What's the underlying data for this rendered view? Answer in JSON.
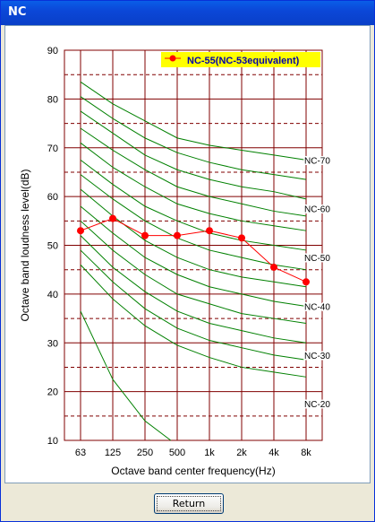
{
  "window": {
    "title": "NC"
  },
  "buttons": {
    "return_label": "Return"
  },
  "chart_data": {
    "type": "line",
    "xlabel": "Octave band center frequency(Hz)",
    "ylabel": "Octave band loudness level(dB)",
    "categories": [
      "63",
      "125",
      "250",
      "500",
      "1k",
      "2k",
      "4k",
      "8k"
    ],
    "ylim": [
      10,
      90
    ],
    "yticks": [
      10,
      20,
      30,
      40,
      50,
      60,
      70,
      80,
      90
    ],
    "grid": true,
    "legend": {
      "position": "top-right",
      "label": "NC-55(NC-53equivalent)"
    },
    "colors": {
      "measured": "#ff0000",
      "nc_curves": "#008000",
      "grid": "#800000",
      "dashed_grid": "#800000",
      "legend_bg": "#ffff00"
    },
    "curve_labels": [
      {
        "text": "NC-70",
        "level": 70
      },
      {
        "text": "NC-60",
        "level": 60
      },
      {
        "text": "NC-50",
        "level": 50
      },
      {
        "text": "NC-40",
        "level": 40
      },
      {
        "text": "NC-30",
        "level": 30
      },
      {
        "text": "NC-20",
        "level": 20
      }
    ],
    "nc_curves": [
      {
        "values": [
          83.5,
          79,
          75.5,
          72,
          70.5,
          69.5,
          68.5,
          67.5
        ]
      },
      {
        "values": [
          80.5,
          76,
          72,
          69,
          67,
          65.5,
          64.5,
          63.5
        ]
      },
      {
        "values": [
          77.5,
          73,
          68.5,
          65.5,
          63.5,
          62,
          61,
          59.5
        ]
      },
      {
        "values": [
          74,
          69.5,
          65.5,
          62,
          60,
          58.5,
          57,
          56
        ]
      },
      {
        "values": [
          71,
          66,
          62,
          58.5,
          56.5,
          55,
          54,
          53
        ]
      },
      {
        "values": [
          67.5,
          62.5,
          58,
          55,
          52.5,
          51,
          50,
          49
        ]
      },
      {
        "values": [
          64.5,
          59.5,
          55,
          51.5,
          49,
          47.5,
          46,
          45
        ]
      },
      {
        "values": [
          61.5,
          56,
          51,
          47.5,
          45,
          43.5,
          42.5,
          41.5
        ]
      },
      {
        "values": [
          58,
          52.5,
          47.5,
          44,
          41.5,
          40,
          38.5,
          37.5
        ]
      },
      {
        "values": [
          55,
          49,
          44,
          40,
          38,
          36,
          35,
          34
        ]
      },
      {
        "values": [
          52,
          45.5,
          40.5,
          36.5,
          34,
          32.5,
          31,
          30
        ]
      },
      {
        "values": [
          49,
          42.5,
          37,
          33,
          30.5,
          29,
          27.5,
          26.5
        ]
      },
      {
        "values": [
          46,
          39,
          33.5,
          29.5,
          27,
          25,
          24,
          23
        ]
      },
      {
        "values": [
          36.5,
          22.5,
          14,
          9
        ]
      }
    ],
    "series": [
      {
        "name": "NC-55(NC-53equivalent)",
        "values": [
          53,
          55.5,
          52,
          52,
          53,
          51.5,
          45.5,
          42.5
        ]
      }
    ]
  }
}
